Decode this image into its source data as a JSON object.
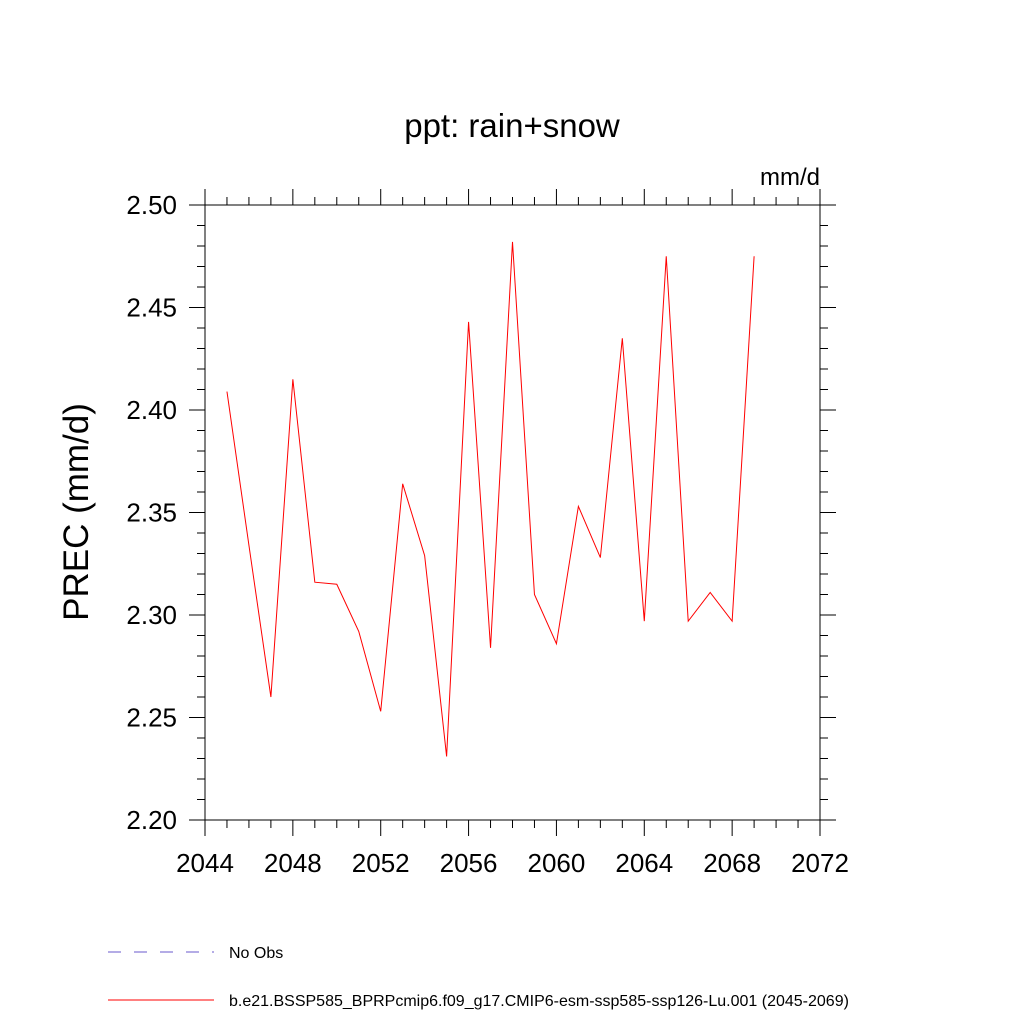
{
  "chart_data": {
    "type": "line",
    "title": "ppt: rain+snow",
    "units": "mm/d",
    "xlabel": "",
    "ylabel": "PREC  (mm/d)",
    "xlim": [
      2044,
      2072
    ],
    "ylim": [
      2.2,
      2.5
    ],
    "xticks": [
      "2044",
      "2048",
      "2052",
      "2056",
      "2060",
      "2064",
      "2068",
      "2072"
    ],
    "yticks": [
      "2.20",
      "2.25",
      "2.30",
      "2.35",
      "2.40",
      "2.45",
      "2.50"
    ],
    "grid": false,
    "legend_position": "bottom",
    "series": [
      {
        "name": "b.e21.BSSP585_BPRPcmip6.f09_g17.CMIP6-esm-ssp585-ssp126-Lu.001 (2045-2069)",
        "color": "#ff0000",
        "style": "solid",
        "x": [
          2045,
          2046,
          2047,
          2048,
          2049,
          2050,
          2051,
          2052,
          2053,
          2054,
          2055,
          2056,
          2057,
          2058,
          2059,
          2060,
          2061,
          2062,
          2063,
          2064,
          2065,
          2066,
          2067,
          2068,
          2069
        ],
        "y": [
          2.409,
          2.334,
          2.26,
          2.415,
          2.316,
          2.315,
          2.292,
          2.253,
          2.364,
          2.329,
          2.231,
          2.443,
          2.284,
          2.482,
          2.31,
          2.286,
          2.353,
          2.328,
          2.435,
          2.297,
          2.475,
          2.297,
          2.311,
          2.297,
          2.475
        ]
      },
      {
        "name": "No Obs",
        "color": "#6a5acd",
        "style": "dashed",
        "x": [],
        "y": []
      }
    ]
  }
}
